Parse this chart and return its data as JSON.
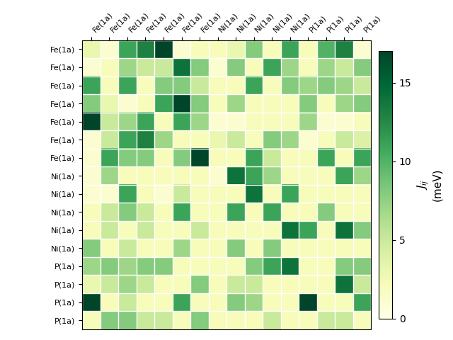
{
  "labels": [
    "Fe(1a)",
    "Fe(1a)",
    "Fe(1a)",
    "Fe(1a)",
    "Fe(1a)",
    "Fe(1a)",
    "Fe(1a)",
    "Ni(1a)",
    "Ni(1a)",
    "Ni(1a)",
    "Ni(1a)",
    "Ni(1a)",
    "P(1a)",
    "P(1a)",
    "P(1a)",
    "P(1a)"
  ],
  "matrix": [
    [
      3,
      1,
      11,
      13,
      17,
      1,
      2,
      2,
      3,
      8,
      2,
      11,
      2,
      10,
      13,
      1
    ],
    [
      1,
      2,
      7,
      5,
      5,
      14,
      8,
      1,
      8,
      2,
      11,
      7,
      2,
      7,
      5,
      8
    ],
    [
      11,
      2,
      11,
      2,
      8,
      8,
      5,
      2,
      2,
      11,
      2,
      8,
      7,
      8,
      7,
      5
    ],
    [
      8,
      3,
      1,
      2,
      11,
      17,
      8,
      2,
      7,
      2,
      2,
      2,
      8,
      2,
      7,
      8
    ],
    [
      17,
      5,
      7,
      11,
      2,
      11,
      7,
      1,
      1,
      2,
      2,
      2,
      7,
      1,
      1,
      2
    ],
    [
      1,
      5,
      11,
      13,
      7,
      2,
      2,
      3,
      5,
      2,
      8,
      7,
      1,
      2,
      5,
      4
    ],
    [
      1,
      11,
      8,
      8,
      2,
      8,
      17,
      2,
      2,
      11,
      5,
      2,
      2,
      11,
      2,
      11
    ],
    [
      1,
      7,
      2,
      2,
      2,
      2,
      2,
      1,
      14,
      11,
      7,
      2,
      2,
      2,
      11,
      7
    ],
    [
      1,
      1,
      11,
      2,
      1,
      5,
      2,
      2,
      2,
      14,
      2,
      11,
      2,
      2,
      2,
      2
    ],
    [
      2,
      5,
      8,
      5,
      2,
      11,
      2,
      2,
      11,
      2,
      11,
      2,
      2,
      8,
      2,
      2
    ],
    [
      2,
      5,
      2,
      5,
      2,
      2,
      5,
      2,
      2,
      2,
      2,
      14,
      11,
      2,
      14,
      8
    ],
    [
      8,
      2,
      5,
      2,
      2,
      7,
      2,
      2,
      8,
      2,
      8,
      2,
      2,
      2,
      2,
      2
    ],
    [
      7,
      8,
      7,
      8,
      8,
      2,
      2,
      2,
      2,
      8,
      11,
      14,
      2,
      2,
      8,
      8
    ],
    [
      3,
      5,
      7,
      5,
      2,
      2,
      8,
      2,
      5,
      5,
      2,
      2,
      2,
      2,
      14,
      5
    ],
    [
      17,
      2,
      5,
      2,
      2,
      11,
      2,
      2,
      8,
      7,
      2,
      2,
      17,
      2,
      2,
      11
    ],
    [
      2,
      8,
      8,
      5,
      5,
      2,
      8,
      2,
      2,
      2,
      5,
      2,
      2,
      5,
      5,
      2
    ]
  ],
  "vmin": 0,
  "vmax": 17,
  "cbar_ticks": [
    0,
    5,
    10,
    15
  ],
  "cbar_label_line1": "$\\mathit{J}_{ij}$",
  "cbar_label_line2": "(meV)",
  "figsize": [
    6.4,
    4.8
  ],
  "dpi": 100,
  "label_fontsize": 8,
  "cbar_fontsize": 11
}
